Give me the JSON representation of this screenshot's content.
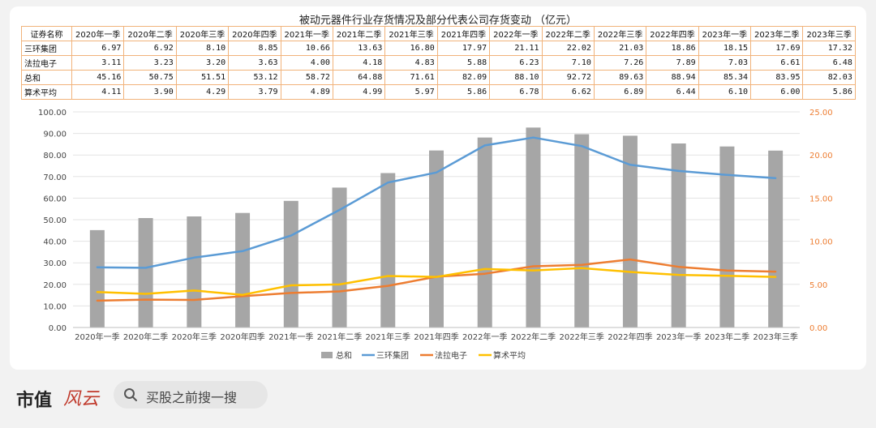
{
  "table": {
    "title": "被动元器件行业存货情况及部分代表公司存货变动 （亿元）",
    "header_label": "证券名称",
    "columns": [
      "2020年一季",
      "2020年二季",
      "2020年三季",
      "2020年四季",
      "2021年一季",
      "2021年二季",
      "2021年三季",
      "2021年四季",
      "2022年一季",
      "2022年二季",
      "2022年三季",
      "2022年四季",
      "2023年一季",
      "2023年二季",
      "2023年三季"
    ],
    "rows": [
      {
        "name": "三环集团",
        "values": [
          "6.97",
          "6.92",
          "8.10",
          "8.85",
          "10.66",
          "13.63",
          "16.80",
          "17.97",
          "21.11",
          "22.02",
          "21.03",
          "18.86",
          "18.15",
          "17.69",
          "17.32"
        ]
      },
      {
        "name": "法拉电子",
        "values": [
          "3.11",
          "3.23",
          "3.20",
          "3.63",
          "4.00",
          "4.18",
          "4.83",
          "5.88",
          "6.23",
          "7.10",
          "7.26",
          "7.89",
          "7.03",
          "6.61",
          "6.48"
        ]
      },
      {
        "name": "总和",
        "values": [
          "45.16",
          "50.75",
          "51.51",
          "53.12",
          "58.72",
          "64.88",
          "71.61",
          "82.09",
          "88.10",
          "92.72",
          "89.63",
          "88.94",
          "85.34",
          "83.95",
          "82.03"
        ]
      },
      {
        "name": "算术平均",
        "values": [
          "4.11",
          "3.90",
          "4.29",
          "3.79",
          "4.89",
          "4.99",
          "5.97",
          "5.86",
          "6.78",
          "6.62",
          "6.89",
          "6.44",
          "6.10",
          "6.00",
          "5.86"
        ]
      }
    ]
  },
  "chart_data": {
    "type": "bar+line",
    "categories": [
      "2020年一季",
      "2020年二季",
      "2020年三季",
      "2020年四季",
      "2021年一季",
      "2021年二季",
      "2021年三季",
      "2021年四季",
      "2022年一季",
      "2022年二季",
      "2022年三季",
      "2022年四季",
      "2023年一季",
      "2023年二季",
      "2023年三季"
    ],
    "series": [
      {
        "name": "总和",
        "type": "bar",
        "axis": "left",
        "color": "#a6a6a6",
        "values": [
          45.16,
          50.75,
          51.51,
          53.12,
          58.72,
          64.88,
          71.61,
          82.09,
          88.1,
          92.72,
          89.63,
          88.94,
          85.34,
          83.95,
          82.03
        ]
      },
      {
        "name": "三环集团",
        "type": "line",
        "axis": "right",
        "color": "#5b9bd5",
        "values": [
          6.97,
          6.92,
          8.1,
          8.85,
          10.66,
          13.63,
          16.8,
          17.97,
          21.11,
          22.02,
          21.03,
          18.86,
          18.15,
          17.69,
          17.32
        ]
      },
      {
        "name": "法拉电子",
        "type": "line",
        "axis": "right",
        "color": "#ed7d31",
        "values": [
          3.11,
          3.23,
          3.2,
          3.63,
          4.0,
          4.18,
          4.83,
          5.88,
          6.23,
          7.1,
          7.26,
          7.89,
          7.03,
          6.61,
          6.48
        ]
      },
      {
        "name": "算术平均",
        "type": "line",
        "axis": "right",
        "color": "#ffc000",
        "values": [
          4.11,
          3.9,
          4.29,
          3.79,
          4.89,
          4.99,
          5.97,
          5.86,
          6.78,
          6.62,
          6.89,
          6.44,
          6.1,
          6.0,
          5.86
        ]
      }
    ],
    "ylim_left": [
      0,
      100
    ],
    "ylim_right": [
      0,
      25
    ],
    "left_ticks": [
      "0.00",
      "10.00",
      "20.00",
      "30.00",
      "40.00",
      "50.00",
      "60.00",
      "70.00",
      "80.00",
      "90.00",
      "100.00"
    ],
    "right_ticks": [
      "0.00",
      "5.00",
      "10.00",
      "15.00",
      "20.00",
      "25.00"
    ],
    "grid": true,
    "legend_position": "bottom"
  },
  "footer": {
    "brand": "市值",
    "brand_script": "风云",
    "search_text": "买股之前搜一搜"
  },
  "colors": {
    "table_border": "#f1b37b",
    "right_axis_text": "#ed7d31"
  },
  "icons": {
    "search": "search-icon"
  }
}
